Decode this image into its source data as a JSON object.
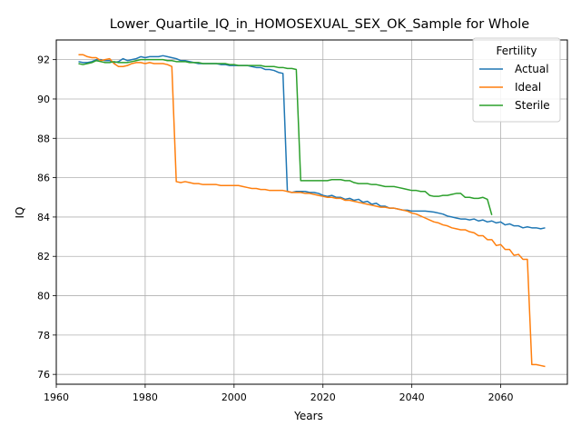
{
  "chart_data": {
    "type": "line",
    "title": "Lower_Quartile_IQ_in_HOMOSEXUAL_SEX_OK_Sample for Whole",
    "xlabel": "Years",
    "ylabel": "IQ",
    "xlim": [
      1960,
      2075
    ],
    "ylim": [
      75.5,
      93.0
    ],
    "xticks": [
      1960,
      1980,
      2000,
      2020,
      2040,
      2060
    ],
    "yticks": [
      76,
      78,
      80,
      82,
      84,
      86,
      88,
      90,
      92
    ],
    "grid": true,
    "legend": {
      "title": "Fertility",
      "position": "top-right"
    },
    "series": [
      {
        "name": "Actual",
        "color": "#1f77b4",
        "points": [
          [
            1965,
            91.9
          ],
          [
            1966,
            91.85
          ],
          [
            1967,
            91.85
          ],
          [
            1968,
            91.9
          ],
          [
            1969,
            92.0
          ],
          [
            1970,
            92.0
          ],
          [
            1971,
            91.95
          ],
          [
            1972,
            91.95
          ],
          [
            1973,
            91.85
          ],
          [
            1974,
            91.9
          ],
          [
            1975,
            92.05
          ],
          [
            1976,
            91.95
          ],
          [
            1977,
            92.0
          ],
          [
            1978,
            92.05
          ],
          [
            1979,
            92.15
          ],
          [
            1980,
            92.1
          ],
          [
            1981,
            92.15
          ],
          [
            1982,
            92.15
          ],
          [
            1983,
            92.15
          ],
          [
            1984,
            92.2
          ],
          [
            1985,
            92.15
          ],
          [
            1986,
            92.1
          ],
          [
            1987,
            92.05
          ],
          [
            1988,
            91.95
          ],
          [
            1989,
            91.95
          ],
          [
            1990,
            91.9
          ],
          [
            1991,
            91.85
          ],
          [
            1992,
            91.8
          ],
          [
            1993,
            91.8
          ],
          [
            1994,
            91.8
          ],
          [
            1995,
            91.8
          ],
          [
            1996,
            91.8
          ],
          [
            1997,
            91.75
          ],
          [
            1998,
            91.75
          ],
          [
            1999,
            91.7
          ],
          [
            2000,
            91.7
          ],
          [
            2001,
            91.7
          ],
          [
            2002,
            91.7
          ],
          [
            2003,
            91.7
          ],
          [
            2004,
            91.65
          ],
          [
            2005,
            91.6
          ],
          [
            2006,
            91.6
          ],
          [
            2007,
            91.5
          ],
          [
            2008,
            91.5
          ],
          [
            2009,
            91.45
          ],
          [
            2010,
            91.35
          ],
          [
            2011,
            91.3
          ],
          [
            2012,
            85.3
          ],
          [
            2013,
            85.25
          ],
          [
            2014,
            85.3
          ],
          [
            2015,
            85.3
          ],
          [
            2016,
            85.3
          ],
          [
            2017,
            85.25
          ],
          [
            2018,
            85.25
          ],
          [
            2019,
            85.2
          ],
          [
            2020,
            85.1
          ],
          [
            2021,
            85.05
          ],
          [
            2022,
            85.1
          ],
          [
            2023,
            85.0
          ],
          [
            2024,
            85.0
          ],
          [
            2025,
            84.9
          ],
          [
            2026,
            84.95
          ],
          [
            2027,
            84.85
          ],
          [
            2028,
            84.9
          ],
          [
            2029,
            84.75
          ],
          [
            2030,
            84.8
          ],
          [
            2031,
            84.65
          ],
          [
            2032,
            84.7
          ],
          [
            2033,
            84.55
          ],
          [
            2034,
            84.55
          ],
          [
            2035,
            84.45
          ],
          [
            2036,
            84.45
          ],
          [
            2037,
            84.4
          ],
          [
            2038,
            84.35
          ],
          [
            2039,
            84.35
          ],
          [
            2040,
            84.3
          ],
          [
            2041,
            84.3
          ],
          [
            2042,
            84.3
          ],
          [
            2043,
            84.3
          ],
          [
            2044,
            84.28
          ],
          [
            2045,
            84.25
          ],
          [
            2046,
            84.2
          ],
          [
            2047,
            84.15
          ],
          [
            2048,
            84.05
          ],
          [
            2049,
            84.0
          ],
          [
            2050,
            83.95
          ],
          [
            2051,
            83.9
          ],
          [
            2052,
            83.9
          ],
          [
            2053,
            83.85
          ],
          [
            2054,
            83.9
          ],
          [
            2055,
            83.8
          ],
          [
            2056,
            83.85
          ],
          [
            2057,
            83.75
          ],
          [
            2058,
            83.8
          ],
          [
            2059,
            83.7
          ],
          [
            2060,
            83.75
          ],
          [
            2061,
            83.6
          ],
          [
            2062,
            83.65
          ],
          [
            2063,
            83.55
          ],
          [
            2064,
            83.55
          ],
          [
            2065,
            83.45
          ],
          [
            2066,
            83.5
          ],
          [
            2067,
            83.45
          ],
          [
            2068,
            83.45
          ],
          [
            2069,
            83.4
          ],
          [
            2070,
            83.45
          ]
        ]
      },
      {
        "name": "Ideal",
        "color": "#ff7f0e",
        "points": [
          [
            1965,
            92.25
          ],
          [
            1966,
            92.25
          ],
          [
            1967,
            92.15
          ],
          [
            1968,
            92.1
          ],
          [
            1969,
            92.1
          ],
          [
            1970,
            91.95
          ],
          [
            1971,
            92.0
          ],
          [
            1972,
            92.05
          ],
          [
            1973,
            91.8
          ],
          [
            1974,
            91.65
          ],
          [
            1975,
            91.65
          ],
          [
            1976,
            91.7
          ],
          [
            1977,
            91.8
          ],
          [
            1978,
            91.85
          ],
          [
            1979,
            91.85
          ],
          [
            1980,
            91.8
          ],
          [
            1981,
            91.85
          ],
          [
            1982,
            91.8
          ],
          [
            1983,
            91.8
          ],
          [
            1984,
            91.8
          ],
          [
            1985,
            91.75
          ],
          [
            1986,
            91.65
          ],
          [
            1987,
            85.8
          ],
          [
            1988,
            85.75
          ],
          [
            1989,
            85.8
          ],
          [
            1990,
            85.75
          ],
          [
            1991,
            85.7
          ],
          [
            1992,
            85.7
          ],
          [
            1993,
            85.65
          ],
          [
            1994,
            85.65
          ],
          [
            1995,
            85.65
          ],
          [
            1996,
            85.65
          ],
          [
            1997,
            85.6
          ],
          [
            1998,
            85.6
          ],
          [
            1999,
            85.6
          ],
          [
            2000,
            85.6
          ],
          [
            2001,
            85.6
          ],
          [
            2002,
            85.55
          ],
          [
            2003,
            85.5
          ],
          [
            2004,
            85.45
          ],
          [
            2005,
            85.45
          ],
          [
            2006,
            85.4
          ],
          [
            2007,
            85.4
          ],
          [
            2008,
            85.35
          ],
          [
            2009,
            85.35
          ],
          [
            2010,
            85.35
          ],
          [
            2011,
            85.35
          ],
          [
            2012,
            85.3
          ],
          [
            2013,
            85.25
          ],
          [
            2014,
            85.25
          ],
          [
            2015,
            85.25
          ],
          [
            2016,
            85.2
          ],
          [
            2017,
            85.2
          ],
          [
            2018,
            85.15
          ],
          [
            2019,
            85.1
          ],
          [
            2020,
            85.05
          ],
          [
            2021,
            85.0
          ],
          [
            2022,
            85.0
          ],
          [
            2023,
            84.95
          ],
          [
            2024,
            84.95
          ],
          [
            2025,
            84.85
          ],
          [
            2026,
            84.85
          ],
          [
            2027,
            84.8
          ],
          [
            2028,
            84.75
          ],
          [
            2029,
            84.7
          ],
          [
            2030,
            84.65
          ],
          [
            2031,
            84.6
          ],
          [
            2032,
            84.55
          ],
          [
            2033,
            84.5
          ],
          [
            2034,
            84.5
          ],
          [
            2035,
            84.45
          ],
          [
            2036,
            84.45
          ],
          [
            2037,
            84.4
          ],
          [
            2038,
            84.35
          ],
          [
            2039,
            84.3
          ],
          [
            2040,
            84.2
          ],
          [
            2041,
            84.15
          ],
          [
            2042,
            84.05
          ],
          [
            2043,
            83.95
          ],
          [
            2044,
            83.85
          ],
          [
            2045,
            83.75
          ],
          [
            2046,
            83.7
          ],
          [
            2047,
            83.6
          ],
          [
            2048,
            83.55
          ],
          [
            2049,
            83.45
          ],
          [
            2050,
            83.4
          ],
          [
            2051,
            83.35
          ],
          [
            2052,
            83.35
          ],
          [
            2053,
            83.25
          ],
          [
            2054,
            83.2
          ],
          [
            2055,
            83.05
          ],
          [
            2056,
            83.05
          ],
          [
            2057,
            82.85
          ],
          [
            2058,
            82.85
          ],
          [
            2059,
            82.55
          ],
          [
            2060,
            82.6
          ],
          [
            2061,
            82.35
          ],
          [
            2062,
            82.35
          ],
          [
            2063,
            82.05
          ],
          [
            2064,
            82.1
          ],
          [
            2065,
            81.85
          ],
          [
            2066,
            81.85
          ],
          [
            2067,
            76.5
          ],
          [
            2068,
            76.5
          ],
          [
            2069,
            76.45
          ],
          [
            2070,
            76.4
          ]
        ]
      },
      {
        "name": "Sterile",
        "color": "#2ca02c",
        "points": [
          [
            1965,
            91.8
          ],
          [
            1966,
            91.75
          ],
          [
            1967,
            91.8
          ],
          [
            1968,
            91.85
          ],
          [
            1969,
            91.95
          ],
          [
            1970,
            91.9
          ],
          [
            1971,
            91.85
          ],
          [
            1972,
            91.85
          ],
          [
            1973,
            91.9
          ],
          [
            1974,
            91.85
          ],
          [
            1975,
            91.85
          ],
          [
            1976,
            91.85
          ],
          [
            1977,
            91.9
          ],
          [
            1978,
            91.95
          ],
          [
            1979,
            92.0
          ],
          [
            1980,
            92.0
          ],
          [
            1981,
            92.0
          ],
          [
            1982,
            92.0
          ],
          [
            1983,
            92.0
          ],
          [
            1984,
            92.0
          ],
          [
            1985,
            91.95
          ],
          [
            1986,
            91.95
          ],
          [
            1987,
            91.9
          ],
          [
            1988,
            91.9
          ],
          [
            1989,
            91.9
          ],
          [
            1990,
            91.85
          ],
          [
            1991,
            91.85
          ],
          [
            1992,
            91.85
          ],
          [
            1993,
            91.8
          ],
          [
            1994,
            91.8
          ],
          [
            1995,
            91.8
          ],
          [
            1996,
            91.8
          ],
          [
            1997,
            91.8
          ],
          [
            1998,
            91.8
          ],
          [
            1999,
            91.75
          ],
          [
            2000,
            91.75
          ],
          [
            2001,
            91.7
          ],
          [
            2002,
            91.7
          ],
          [
            2003,
            91.7
          ],
          [
            2004,
            91.7
          ],
          [
            2005,
            91.7
          ],
          [
            2006,
            91.7
          ],
          [
            2007,
            91.65
          ],
          [
            2008,
            91.65
          ],
          [
            2009,
            91.65
          ],
          [
            2010,
            91.6
          ],
          [
            2011,
            91.6
          ],
          [
            2012,
            91.55
          ],
          [
            2013,
            91.55
          ],
          [
            2014,
            91.5
          ],
          [
            2015,
            85.85
          ],
          [
            2016,
            85.85
          ],
          [
            2017,
            85.85
          ],
          [
            2018,
            85.85
          ],
          [
            2019,
            85.85
          ],
          [
            2020,
            85.85
          ],
          [
            2021,
            85.85
          ],
          [
            2022,
            85.9
          ],
          [
            2023,
            85.9
          ],
          [
            2024,
            85.9
          ],
          [
            2025,
            85.85
          ],
          [
            2026,
            85.85
          ],
          [
            2027,
            85.75
          ],
          [
            2028,
            85.7
          ],
          [
            2029,
            85.7
          ],
          [
            2030,
            85.7
          ],
          [
            2031,
            85.65
          ],
          [
            2032,
            85.65
          ],
          [
            2033,
            85.6
          ],
          [
            2034,
            85.55
          ],
          [
            2035,
            85.55
          ],
          [
            2036,
            85.55
          ],
          [
            2037,
            85.5
          ],
          [
            2038,
            85.45
          ],
          [
            2039,
            85.4
          ],
          [
            2040,
            85.35
          ],
          [
            2041,
            85.35
          ],
          [
            2042,
            85.3
          ],
          [
            2043,
            85.3
          ],
          [
            2044,
            85.1
          ],
          [
            2045,
            85.05
          ],
          [
            2046,
            85.05
          ],
          [
            2047,
            85.1
          ],
          [
            2048,
            85.1
          ],
          [
            2049,
            85.15
          ],
          [
            2050,
            85.2
          ],
          [
            2051,
            85.2
          ],
          [
            2052,
            85.0
          ],
          [
            2053,
            85.0
          ],
          [
            2054,
            84.95
          ],
          [
            2055,
            84.95
          ],
          [
            2056,
            85.0
          ],
          [
            2057,
            84.9
          ],
          [
            2058,
            84.1
          ]
        ]
      }
    ]
  }
}
